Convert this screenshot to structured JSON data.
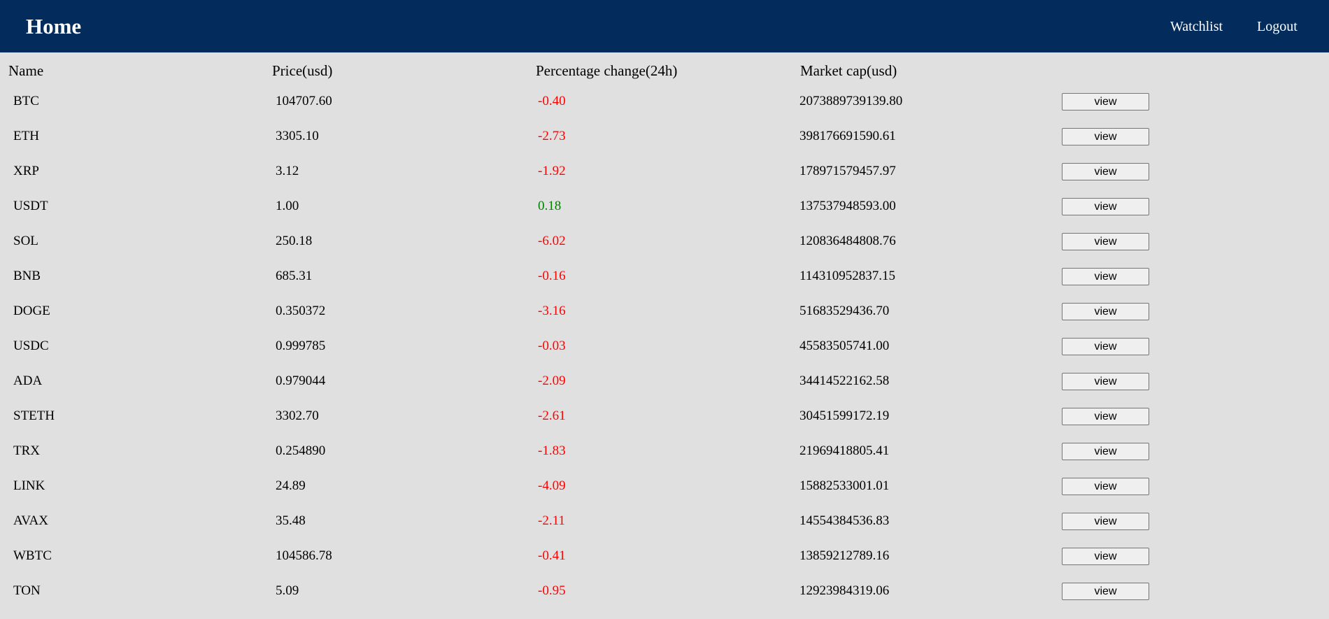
{
  "navbar": {
    "title": "Home",
    "links": {
      "watchlist": "Watchlist",
      "logout": "Logout"
    },
    "background_color": "#032b5c"
  },
  "table": {
    "headers": {
      "name": "Name",
      "price": "Price(usd)",
      "change": "Percentage change(24h)",
      "market_cap": "Market cap(usd)"
    },
    "view_label": "view",
    "negative_color": "#ff0000",
    "positive_color": "#008000",
    "rows": [
      {
        "name": "BTC",
        "price": "104707.60",
        "change": "-0.40",
        "market_cap": "2073889739139.80"
      },
      {
        "name": "ETH",
        "price": "3305.10",
        "change": "-2.73",
        "market_cap": "398176691590.61"
      },
      {
        "name": "XRP",
        "price": "3.12",
        "change": "-1.92",
        "market_cap": "178971579457.97"
      },
      {
        "name": "USDT",
        "price": "1.00",
        "change": "0.18",
        "market_cap": "137537948593.00"
      },
      {
        "name": "SOL",
        "price": "250.18",
        "change": "-6.02",
        "market_cap": "120836484808.76"
      },
      {
        "name": "BNB",
        "price": "685.31",
        "change": "-0.16",
        "market_cap": "114310952837.15"
      },
      {
        "name": "DOGE",
        "price": "0.350372",
        "change": "-3.16",
        "market_cap": "51683529436.70"
      },
      {
        "name": "USDC",
        "price": "0.999785",
        "change": "-0.03",
        "market_cap": "45583505741.00"
      },
      {
        "name": "ADA",
        "price": "0.979044",
        "change": "-2.09",
        "market_cap": "34414522162.58"
      },
      {
        "name": "STETH",
        "price": "3302.70",
        "change": "-2.61",
        "market_cap": "30451599172.19"
      },
      {
        "name": "TRX",
        "price": "0.254890",
        "change": "-1.83",
        "market_cap": "21969418805.41"
      },
      {
        "name": "LINK",
        "price": "24.89",
        "change": "-4.09",
        "market_cap": "15882533001.01"
      },
      {
        "name": "AVAX",
        "price": "35.48",
        "change": "-2.11",
        "market_cap": "14554384536.83"
      },
      {
        "name": "WBTC",
        "price": "104586.78",
        "change": "-0.41",
        "market_cap": "13859212789.16"
      },
      {
        "name": "TON",
        "price": "5.09",
        "change": "-0.95",
        "market_cap": "12923984319.06"
      }
    ]
  }
}
